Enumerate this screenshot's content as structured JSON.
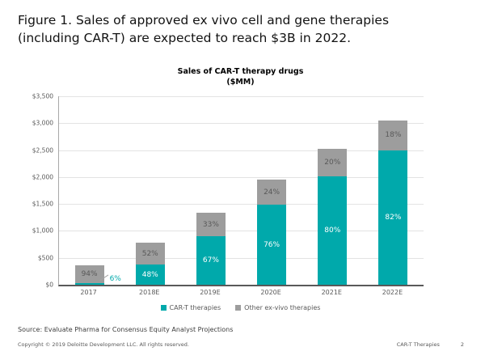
{
  "slide": {
    "title_line1": "Figure 1. Sales of approved ex vivo cell and gene therapies",
    "title_line2": "(including CAR-T) are expected to reach $3B in 2022.",
    "source": "Source: Evaluate Pharma for Consensus Equity Analyst Projections",
    "copyright": "Copyright © 2019 Deloitte Development LLC. All rights reserved.",
    "footer_right_label": "CAR-T Therapies",
    "page_number": "2"
  },
  "chart_data": {
    "type": "bar",
    "stacked": true,
    "title": "Sales of CAR-T therapy drugs",
    "subtitle": "($MM)",
    "categories": [
      "2017",
      "2018E",
      "2019E",
      "2020E",
      "2021E",
      "2022E"
    ],
    "series": [
      {
        "name": "CAR-T therapies",
        "color": "#00a9ab",
        "values": [
          21,
          372,
          898,
          1482,
          2020,
          2501
        ],
        "pct_labels": [
          "6%",
          "48%",
          "67%",
          "76%",
          "80%",
          "82%"
        ]
      },
      {
        "name": "Other ex-vivo therapies",
        "color": "#9d9d9d",
        "values": [
          334,
          403,
          442,
          468,
          505,
          549
        ],
        "pct_labels": [
          "94%",
          "52%",
          "33%",
          "24%",
          "20%",
          "18%"
        ]
      }
    ],
    "totals": [
      355,
      775,
      1340,
      1950,
      2525,
      3050
    ],
    "ylim": [
      0,
      3500
    ],
    "ytick_step": 500,
    "ytick_labels": [
      "$0",
      "$500",
      "$1,000",
      "$1,500",
      "$2,000",
      "$2,500",
      "$3,000",
      "$3,500"
    ],
    "grid": true,
    "legend_position": "bottom"
  }
}
